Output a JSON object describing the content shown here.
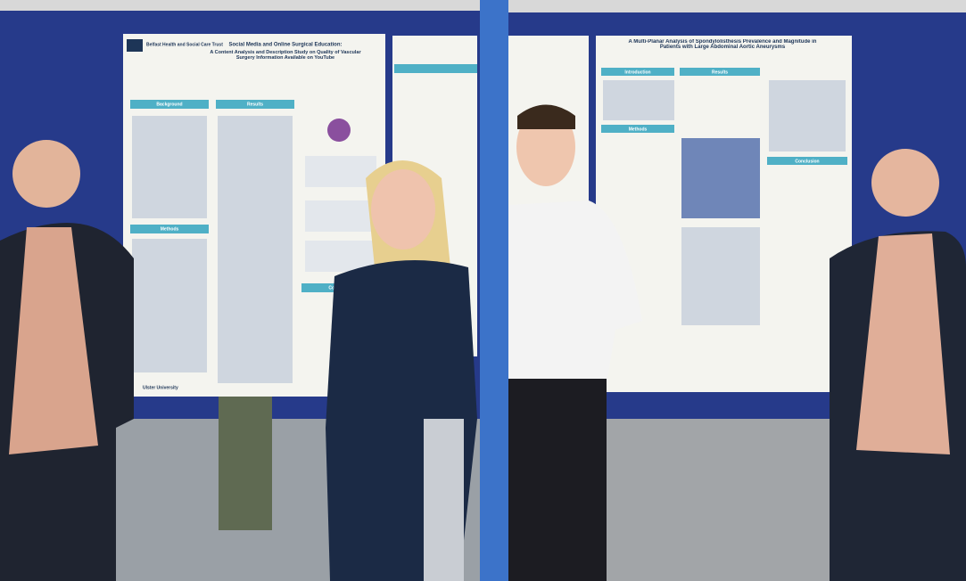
{
  "photos": [
    {
      "poster": {
        "org": "Belfast Health and Social Care Trust",
        "title": "Social Media and Online Surgical Education:",
        "subtitle": "A Content Analysis and Description Study on Quality of Vascular Surgery Information Available on YouTube",
        "sections": [
          "Background",
          "Results",
          "Methods",
          "Conclusion"
        ],
        "footer": "Ulster University"
      }
    },
    {
      "poster": {
        "title": "A Multi-Planar Analysis of Spondylolisthesis Prevalence and Magnitude in Patients with Large Abdominal Aortic Aneurysms",
        "sections": [
          "Introduction",
          "Methods",
          "Results",
          "Conclusion"
        ]
      }
    }
  ]
}
